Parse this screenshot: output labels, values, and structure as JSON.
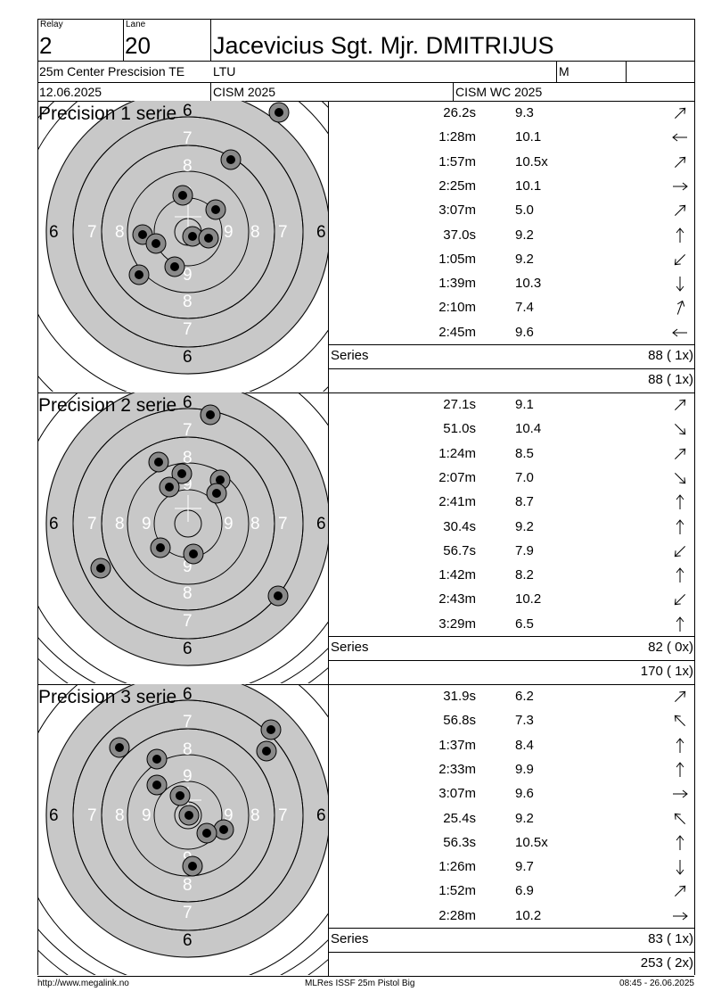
{
  "header": {
    "relay_label": "Relay",
    "relay": "2",
    "lane_label": "Lane",
    "lane": "20",
    "name": "Jacevicius Sgt. Mjr. DMITRIJUS",
    "event": "25m Center Prescision TE",
    "country": "LTU",
    "gender": "M",
    "date": "12.06.2025",
    "competition": "CISM 2025",
    "championship": "CISM WC 2025"
  },
  "series": [
    {
      "title": "Precision 1 serie",
      "shots": [
        {
          "time": "26.2s",
          "value": "9.3",
          "dir": "ne"
        },
        {
          "time": "1:28m",
          "value": "10.1",
          "dir": "w"
        },
        {
          "time": "1:57m",
          "value": "10.5x",
          "dir": "ne"
        },
        {
          "time": "2:25m",
          "value": "10.1",
          "dir": "e"
        },
        {
          "time": "3:07m",
          "value": "5.0",
          "dir": "ne"
        },
        {
          "time": "37.0s",
          "value": "9.2",
          "dir": "n"
        },
        {
          "time": "1:05m",
          "value": "9.2",
          "dir": "sw"
        },
        {
          "time": "1:39m",
          "value": "10.3",
          "dir": "s"
        },
        {
          "time": "2:10m",
          "value": "7.4",
          "dir": "nne"
        },
        {
          "time": "2:45m",
          "value": "9.6",
          "dir": "w"
        }
      ],
      "series_label": "Series",
      "series_total": "88 ( 1x)",
      "running_total": "88 ( 1x)",
      "hits": [
        [
          313,
          126
        ],
        [
          259,
          179
        ],
        [
          205,
          219
        ],
        [
          242,
          235
        ],
        [
          160,
          263
        ],
        [
          175,
          273
        ],
        [
          216,
          265
        ],
        [
          234,
          267
        ],
        [
          196,
          299
        ],
        [
          156,
          308
        ]
      ]
    },
    {
      "title": "Precision 2 serie",
      "shots": [
        {
          "time": "27.1s",
          "value": "9.1",
          "dir": "ne"
        },
        {
          "time": "51.0s",
          "value": "10.4",
          "dir": "se"
        },
        {
          "time": "1:24m",
          "value": "8.5",
          "dir": "ne"
        },
        {
          "time": "2:07m",
          "value": "7.0",
          "dir": "se"
        },
        {
          "time": "2:41m",
          "value": "8.7",
          "dir": "n"
        },
        {
          "time": "30.4s",
          "value": "9.2",
          "dir": "n"
        },
        {
          "time": "56.7s",
          "value": "7.9",
          "dir": "sw"
        },
        {
          "time": "1:42m",
          "value": "8.2",
          "dir": "n"
        },
        {
          "time": "2:43m",
          "value": "10.2",
          "dir": "sw"
        },
        {
          "time": "3:29m",
          "value": "6.5",
          "dir": "n"
        }
      ],
      "series_label": "Series",
      "series_total": "82 ( 0x)",
      "running_total": "170 ( 1x)",
      "hits": [
        [
          236,
          465
        ],
        [
          178,
          518
        ],
        [
          204,
          531
        ],
        [
          247,
          538
        ],
        [
          190,
          546
        ],
        [
          243,
          553
        ],
        [
          180,
          614
        ],
        [
          217,
          621
        ],
        [
          113,
          637
        ],
        [
          312,
          668
        ]
      ]
    },
    {
      "title": "Precision 3 serie",
      "shots": [
        {
          "time": "31.9s",
          "value": "6.2",
          "dir": "ne"
        },
        {
          "time": "56.8s",
          "value": "7.3",
          "dir": "nw"
        },
        {
          "time": "1:37m",
          "value": "8.4",
          "dir": "n"
        },
        {
          "time": "2:33m",
          "value": "9.9",
          "dir": "n"
        },
        {
          "time": "3:07m",
          "value": "9.6",
          "dir": "e"
        },
        {
          "time": "25.4s",
          "value": "9.2",
          "dir": "nw"
        },
        {
          "time": "56.3s",
          "value": "10.5x",
          "dir": "n"
        },
        {
          "time": "1:26m",
          "value": "9.7",
          "dir": "s"
        },
        {
          "time": "1:52m",
          "value": "6.9",
          "dir": "ne"
        },
        {
          "time": "2:28m",
          "value": "10.2",
          "dir": "e"
        }
      ],
      "series_label": "Series",
      "series_total": "83 ( 1x)",
      "running_total": "253 ( 2x)",
      "hits": [
        [
          304,
          818
        ],
        [
          134,
          838
        ],
        [
          299,
          842
        ],
        [
          176,
          851
        ],
        [
          176,
          880
        ],
        [
          202,
          892
        ],
        [
          212,
          914
        ],
        [
          251,
          930
        ],
        [
          232,
          934
        ],
        [
          216,
          971
        ]
      ]
    }
  ],
  "footer": {
    "url": "http://www.megalink.no",
    "software": "MLRes ISSF 25m Pistol Big",
    "timestamp": "08:45 - 26.06.2025"
  }
}
